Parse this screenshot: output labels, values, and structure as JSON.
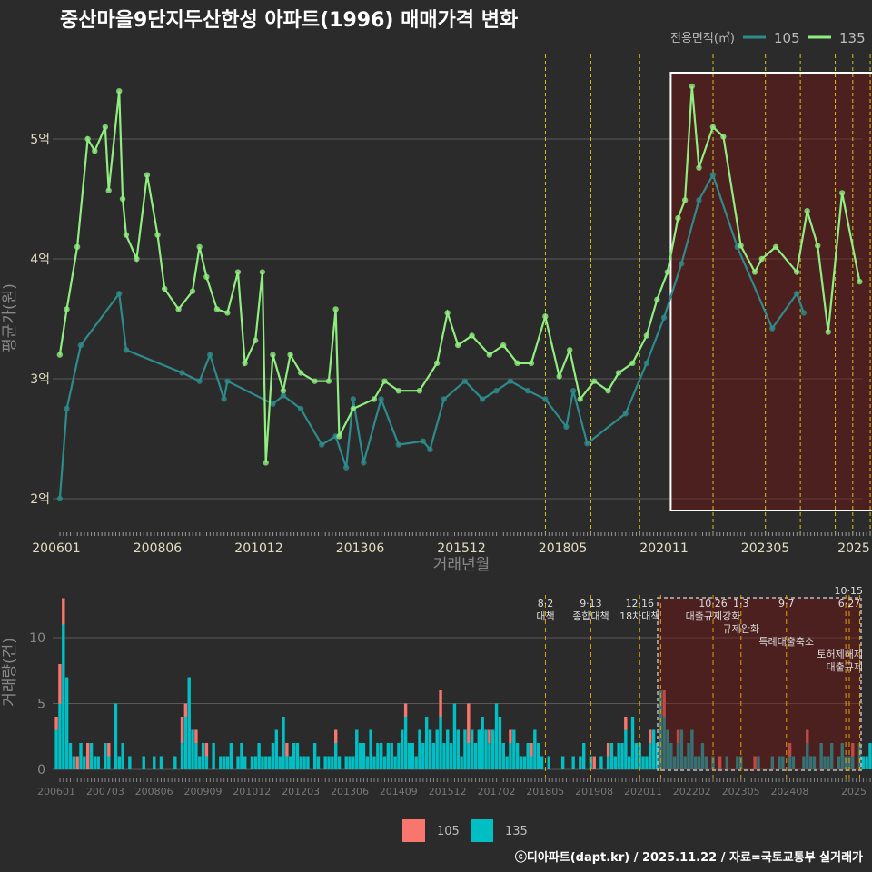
{
  "chart_data": [
    {
      "type": "line",
      "title": "중산마을9단지두산한성 아파트(1996) 매매가격 변화",
      "xlabel": "거래년월",
      "ylabel": "평균가(원)",
      "x_ticks": [
        "200601",
        "200806",
        "201012",
        "201306",
        "201512",
        "201805",
        "202011",
        "202305",
        "2025"
      ],
      "y_ticks": [
        {
          "v": 2,
          "label": "2억"
        },
        {
          "v": 3,
          "label": "3억"
        },
        {
          "v": 4,
          "label": "4억"
        },
        {
          "v": 5,
          "label": "5억"
        }
      ],
      "ylim": [
        1.85,
        5.65
      ],
      "x_unit": "months since 2006-01",
      "legend": {
        "title": "전용면적(㎡)",
        "position": "top-right"
      },
      "highlight_range_months": [
        178,
        233
      ],
      "series": [
        {
          "name": "105",
          "color": "#2E8B8B",
          "points": [
            [
              1,
              2.0
            ],
            [
              3,
              2.75
            ],
            [
              7,
              3.28
            ],
            [
              18,
              3.71
            ],
            [
              20,
              3.24
            ],
            [
              36,
              3.05
            ],
            [
              41,
              2.98
            ],
            [
              44,
              3.2
            ],
            [
              48,
              2.83
            ],
            [
              49,
              2.98
            ],
            [
              62,
              2.79
            ],
            [
              65,
              2.86
            ],
            [
              70,
              2.75
            ],
            [
              76,
              2.45
            ],
            [
              80,
              2.52
            ],
            [
              83,
              2.26
            ],
            [
              85,
              2.83
            ],
            [
              88,
              2.3
            ],
            [
              93,
              2.83
            ],
            [
              98,
              2.45
            ],
            [
              105,
              2.48
            ],
            [
              107,
              2.41
            ],
            [
              111,
              2.83
            ],
            [
              117,
              2.98
            ],
            [
              122,
              2.83
            ],
            [
              126,
              2.9
            ],
            [
              130,
              2.98
            ],
            [
              135,
              2.9
            ],
            [
              140,
              2.83
            ],
            [
              146,
              2.6
            ],
            [
              148,
              2.9
            ],
            [
              152,
              2.46
            ],
            [
              163,
              2.71
            ],
            [
              169,
              3.13
            ],
            [
              174,
              3.51
            ],
            [
              179,
              3.96
            ],
            [
              184,
              4.49
            ],
            [
              188,
              4.7
            ],
            [
              195,
              4.1
            ],
            [
              205,
              3.42
            ],
            [
              212,
              3.71
            ],
            [
              214,
              3.55
            ]
          ]
        },
        {
          "name": "135",
          "color": "#90EE80",
          "points": [
            [
              1,
              3.2
            ],
            [
              3,
              3.58
            ],
            [
              6,
              4.1
            ],
            [
              9,
              5.0
            ],
            [
              11,
              4.9
            ],
            [
              14,
              5.1
            ],
            [
              15,
              4.57
            ],
            [
              18,
              5.4
            ],
            [
              19,
              4.5
            ],
            [
              20,
              4.2
            ],
            [
              23,
              4.0
            ],
            [
              26,
              4.7
            ],
            [
              29,
              4.2
            ],
            [
              31,
              3.75
            ],
            [
              35,
              3.58
            ],
            [
              39,
              3.73
            ],
            [
              41,
              4.1
            ],
            [
              43,
              3.85
            ],
            [
              46,
              3.58
            ],
            [
              49,
              3.55
            ],
            [
              52,
              3.89
            ],
            [
              54,
              3.13
            ],
            [
              57,
              3.32
            ],
            [
              59,
              3.89
            ],
            [
              60,
              2.3
            ],
            [
              62,
              3.2
            ],
            [
              65,
              2.9
            ],
            [
              67,
              3.2
            ],
            [
              70,
              3.05
            ],
            [
              74,
              2.98
            ],
            [
              78,
              2.98
            ],
            [
              80,
              3.58
            ],
            [
              81,
              2.52
            ],
            [
              85,
              2.75
            ],
            [
              91,
              2.83
            ],
            [
              94,
              2.98
            ],
            [
              98,
              2.9
            ],
            [
              104,
              2.9
            ],
            [
              109,
              3.13
            ],
            [
              112,
              3.55
            ],
            [
              115,
              3.28
            ],
            [
              119,
              3.36
            ],
            [
              124,
              3.2
            ],
            [
              128,
              3.28
            ],
            [
              132,
              3.13
            ],
            [
              136,
              3.13
            ],
            [
              140,
              3.52
            ],
            [
              144,
              3.02
            ],
            [
              147,
              3.24
            ],
            [
              150,
              2.83
            ],
            [
              154,
              2.98
            ],
            [
              158,
              2.9
            ],
            [
              161,
              3.05
            ],
            [
              165,
              3.13
            ],
            [
              169,
              3.36
            ],
            [
              172,
              3.66
            ],
            [
              175,
              3.89
            ],
            [
              178,
              4.34
            ],
            [
              180,
              4.49
            ],
            [
              182,
              5.44
            ],
            [
              184,
              4.76
            ],
            [
              188,
              5.1
            ],
            [
              191,
              5.02
            ],
            [
              196,
              4.11
            ],
            [
              200,
              3.89
            ],
            [
              202,
              4.0
            ],
            [
              206,
              4.1
            ],
            [
              212,
              3.89
            ],
            [
              215,
              4.4
            ],
            [
              218,
              4.11
            ],
            [
              221,
              3.39
            ],
            [
              225,
              4.55
            ],
            [
              230,
              3.81
            ]
          ]
        }
      ],
      "policy_months": [
        139,
        152,
        166,
        187,
        202,
        212,
        222,
        227,
        232
      ]
    },
    {
      "type": "bar",
      "ylabel": "거래량(건)",
      "y_ticks": [
        0,
        5,
        10
      ],
      "ylim": [
        0,
        13
      ],
      "x_ticks": [
        "200601",
        "200703",
        "200806",
        "200909",
        "201012",
        "201203",
        "201306",
        "201409",
        "201512",
        "201702",
        "201805",
        "201908",
        "202011",
        "202202",
        "202305",
        "202408",
        "2025"
      ],
      "legend": [
        "105",
        "135"
      ],
      "colors": {
        "105": "#F8766D",
        "135": "#00BFC4"
      },
      "series_135": [
        3,
        5,
        11,
        7,
        2,
        1,
        0,
        2,
        1,
        0,
        2,
        1,
        1,
        0,
        2,
        1,
        0,
        5,
        1,
        2,
        0,
        1,
        0,
        0,
        0,
        1,
        0,
        0,
        1,
        0,
        1,
        0,
        0,
        0,
        1,
        0,
        2,
        4,
        7,
        3,
        2,
        1,
        2,
        1,
        0,
        2,
        0,
        1,
        1,
        1,
        2,
        0,
        1,
        2,
        1,
        0,
        1,
        1,
        2,
        1,
        1,
        1,
        2,
        3,
        1,
        4,
        1,
        1,
        2,
        2,
        1,
        1,
        1,
        0,
        2,
        1,
        0,
        1,
        1,
        1,
        2,
        1,
        0,
        1,
        1,
        1,
        3,
        2,
        2,
        1,
        3,
        1,
        2,
        2,
        1,
        2,
        2,
        1,
        2,
        3,
        4,
        2,
        2,
        1,
        3,
        2,
        4,
        3,
        2,
        3,
        4,
        2,
        3,
        2,
        5,
        3,
        1,
        3,
        2,
        3,
        2,
        3,
        4,
        3,
        2,
        3,
        5,
        4,
        2,
        1,
        2,
        3,
        2,
        1,
        1,
        2,
        1,
        3,
        2,
        1,
        0,
        1,
        0,
        0,
        0,
        1,
        0,
        0,
        1,
        0,
        1,
        2,
        0,
        1,
        0,
        0,
        1,
        0,
        1,
        2,
        1,
        2,
        2,
        3,
        1,
        4,
        2,
        2,
        1,
        1,
        2,
        3,
        2,
        6,
        4,
        3,
        2,
        1,
        2,
        3,
        1,
        2,
        3,
        1,
        1,
        2,
        1,
        0,
        1,
        0,
        0,
        0,
        1,
        0,
        0,
        1,
        1,
        0,
        0,
        0,
        0,
        1,
        0,
        0,
        0,
        1,
        0,
        1,
        1,
        0,
        1,
        1,
        0,
        0,
        1,
        2,
        1,
        1,
        0,
        2,
        1,
        1,
        2,
        0,
        1,
        2,
        1,
        1,
        1,
        0,
        2,
        1,
        1,
        2,
        1,
        1,
        1,
        0
      ],
      "series_105": [
        [
          0,
          1
        ],
        [
          1,
          3
        ],
        [
          2,
          2
        ],
        [
          6,
          1
        ],
        [
          9,
          2
        ],
        [
          15,
          1
        ],
        [
          36,
          2
        ],
        [
          37,
          1
        ],
        [
          40,
          1
        ],
        [
          43,
          1
        ],
        [
          66,
          1
        ],
        [
          80,
          1
        ],
        [
          100,
          1
        ],
        [
          110,
          2
        ],
        [
          118,
          3
        ],
        [
          124,
          1
        ],
        [
          130,
          1
        ],
        [
          136,
          1
        ],
        [
          154,
          1
        ],
        [
          158,
          1
        ],
        [
          163,
          1
        ],
        [
          170,
          1
        ],
        [
          174,
          2
        ],
        [
          178,
          1
        ],
        [
          190,
          1
        ],
        [
          200,
          1
        ],
        [
          210,
          1
        ],
        [
          215,
          1
        ],
        [
          228,
          1
        ]
      ],
      "policies": [
        {
          "month": 139,
          "date": "8·2",
          "name": "대책"
        },
        {
          "month": 152,
          "date": "9·13",
          "name": "종합대책"
        },
        {
          "month": 166,
          "date": "12·16",
          "name": "18차대책"
        },
        {
          "month": 172,
          "date": "",
          "name": ""
        },
        {
          "month": 187,
          "date": "10·26",
          "name": "대출규제강화"
        },
        {
          "month": 195,
          "date": "1·3",
          "name": "규제완화"
        },
        {
          "month": 208,
          "date": "9·7",
          "name": "특례대출축소"
        },
        {
          "month": 225,
          "date": "",
          "name": "토허제해제"
        },
        {
          "month": 226,
          "date": "6·27",
          "name": "대출규제"
        },
        {
          "month": 229,
          "date": "10·15",
          "name": ""
        },
        {
          "month": 233,
          "date": "",
          "name": ""
        }
      ]
    }
  ],
  "footer": "ⓒ디아파트(dapt.kr) / 2025.11.22 / 자료=국토교통부 실거래가"
}
